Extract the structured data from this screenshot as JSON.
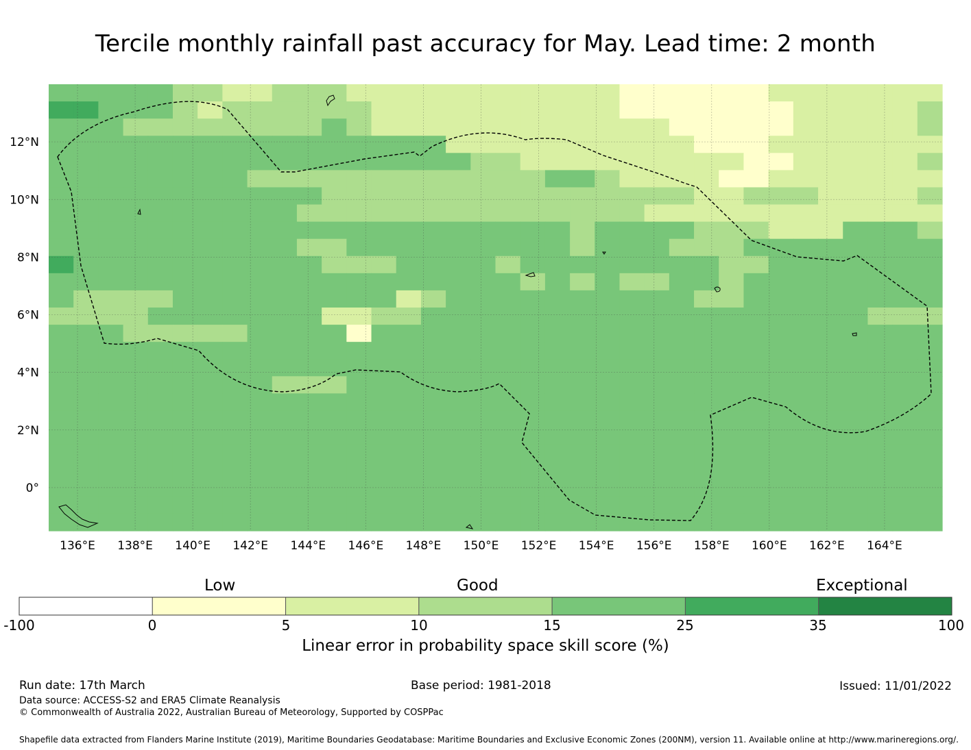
{
  "title": "Tercile monthly rainfall past accuracy for May. Lead time: 2 month",
  "map": {
    "lon_labels": [
      "136°E",
      "138°E",
      "140°E",
      "142°E",
      "144°E",
      "146°E",
      "148°E",
      "150°E",
      "152°E",
      "154°E",
      "156°E",
      "158°E",
      "160°E",
      "162°E",
      "164°E"
    ],
    "lat_labels": [
      "12°N",
      "10°N",
      "8°N",
      "6°N",
      "4°N",
      "2°N",
      "0°"
    ],
    "lon_values": [
      136,
      138,
      140,
      142,
      144,
      146,
      148,
      150,
      152,
      154,
      156,
      158,
      160,
      162,
      164
    ],
    "lat_values": [
      12,
      10,
      8,
      6,
      4,
      2,
      0
    ],
    "extent": {
      "lon_min": 135.0,
      "lon_max": 166.0,
      "lat_min": -1.5,
      "lat_max": 14.0
    },
    "cell_size_deg": 0.833,
    "skill_grid_rows_north_to_south": [
      "444443322333222222222221111112222222",
      "554443233333322222222221111111222223",
      "444333333334322222222222211111222223",
      "444444444444444422222222221112222222",
      "444444444444444443322222222211222223",
      "444444443333333333334432222112222222",
      "444444444443333333333333332233322223",
      "444444444433333333333333222222222222",
      "444444444444444444444344443332224443",
      "444444444433444444444344433344444444",
      "544444444443334444344444444334444444",
      "444444444444444444434343344344444444",
      "433334444444442344444444443344444444",
      "333344444442233444444444444444444333",
      "444333334444144444444444444444444444",
      "444444444444444444444444444444444444",
      "444444444444444444444444444444444444",
      "444444444333444444444444444444444444",
      "444444444444444444444444444444444444",
      "444444444444444444444444444444444444",
      "444444444444444444444444444444444444",
      "444444444444444444444444444444444444",
      "444444444444444444444444444444444444",
      "444444444444444444444444444444444444",
      "444444444444444444444444444444444444",
      "444444444444444444444444444444444444"
    ],
    "colors": [
      "#ffffff",
      "#ffffcc",
      "#d9f0a3",
      "#addd8e",
      "#78c679",
      "#41ab5d",
      "#238443"
    ],
    "eez_outline": "dashed",
    "gridlines": true
  },
  "colorbar": {
    "categories": [
      {
        "label": "Low"
      },
      {
        "label": "Good"
      },
      {
        "label": "Exceptional"
      }
    ],
    "ticks": [
      "-100",
      "0",
      "5",
      "10",
      "15",
      "25",
      "35",
      "100"
    ],
    "colors": [
      "#ffffff",
      "#ffffcc",
      "#d9f0a3",
      "#addd8e",
      "#78c679",
      "#41ab5d",
      "#238443"
    ],
    "label": "Linear error in probability space skill score (%)"
  },
  "footer": {
    "run_date": "Run date: 17th March",
    "base_period": "Base period: 1981-2018",
    "issued": "Issued: 11/01/2022",
    "data_source": "Data source: ACCESS-S2 and ERA5 Climate Reanalysis",
    "copyright": "© Commonwealth of Australia 2022, Australian Bureau of Meteorology, Supported by COSPPac",
    "shapefile": "Shapefile data extracted from Flanders Marine Institute (2019), Maritime Boundaries Geodatabase: Maritime Boundaries and Exclusive Economic Zones (200NM), version 11. Available online at http://www.marineregions.org/."
  }
}
